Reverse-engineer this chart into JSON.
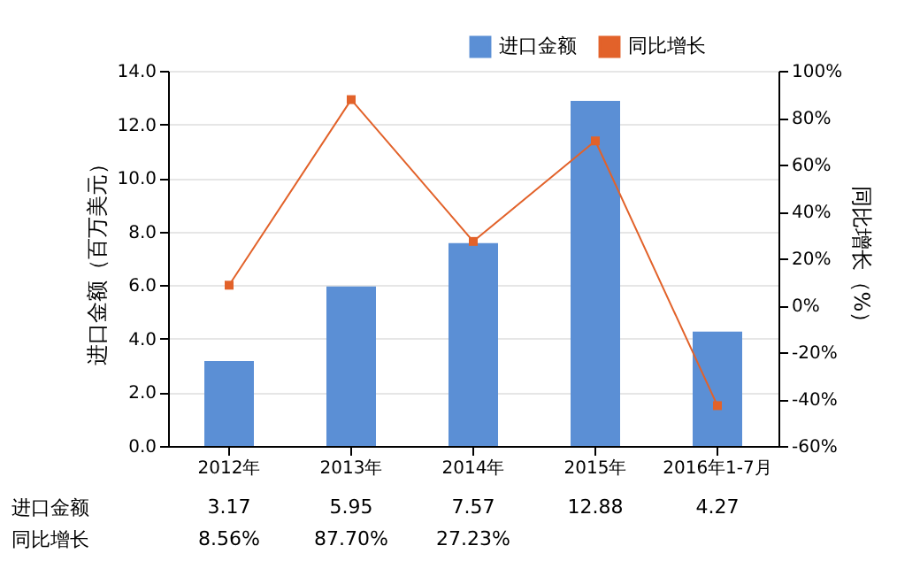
{
  "chart_data": {
    "type": "bar",
    "categories": [
      "2012年",
      "2013年",
      "2014年",
      "2015年",
      "2016年1-7月"
    ],
    "ylabel": "进口金额（百万美元）",
    "y2label": "同比增长（%）",
    "series": [
      {
        "name": "进口金额",
        "color": "#5b8fd5",
        "values": [
          3.17,
          5.95,
          7.57,
          12.88,
          4.27
        ],
        "data_labels": true
      },
      {
        "name": "同比增长",
        "type": "line",
        "axis": "y2",
        "color": "#e2622a",
        "marker": "square",
        "values": [
          8.56,
          87.7,
          27.23,
          70.1,
          -42.8
        ],
        "value_labels": [
          "8.56%",
          "87.70%",
          "27.23%",
          null,
          null
        ]
      }
    ],
    "ylim": [
      0,
      14
    ],
    "yticks": [
      {
        "value": 0,
        "label": "0.0"
      },
      {
        "value": 2,
        "label": "2.0"
      },
      {
        "value": 4,
        "label": "4.0"
      },
      {
        "value": 6,
        "label": "6.0"
      },
      {
        "value": 8,
        "label": "8.0"
      },
      {
        "value": 10,
        "label": "10.0"
      },
      {
        "value": 12,
        "label": "12.0"
      },
      {
        "value": 14,
        "label": "14.0"
      }
    ],
    "y2lim": [
      -60,
      100
    ],
    "y2ticks": [
      {
        "value": -60,
        "label": "-60%"
      },
      {
        "value": -40,
        "label": "-40%"
      },
      {
        "value": -20,
        "label": "-20%"
      },
      {
        "value": 0,
        "label": "0%"
      },
      {
        "value": 20,
        "label": "20%"
      },
      {
        "value": 40,
        "label": "40%"
      },
      {
        "value": 60,
        "label": "60%"
      },
      {
        "value": 80,
        "label": "80%"
      },
      {
        "value": 100,
        "label": "100%"
      }
    ],
    "grid": "y",
    "legend": "top right"
  }
}
